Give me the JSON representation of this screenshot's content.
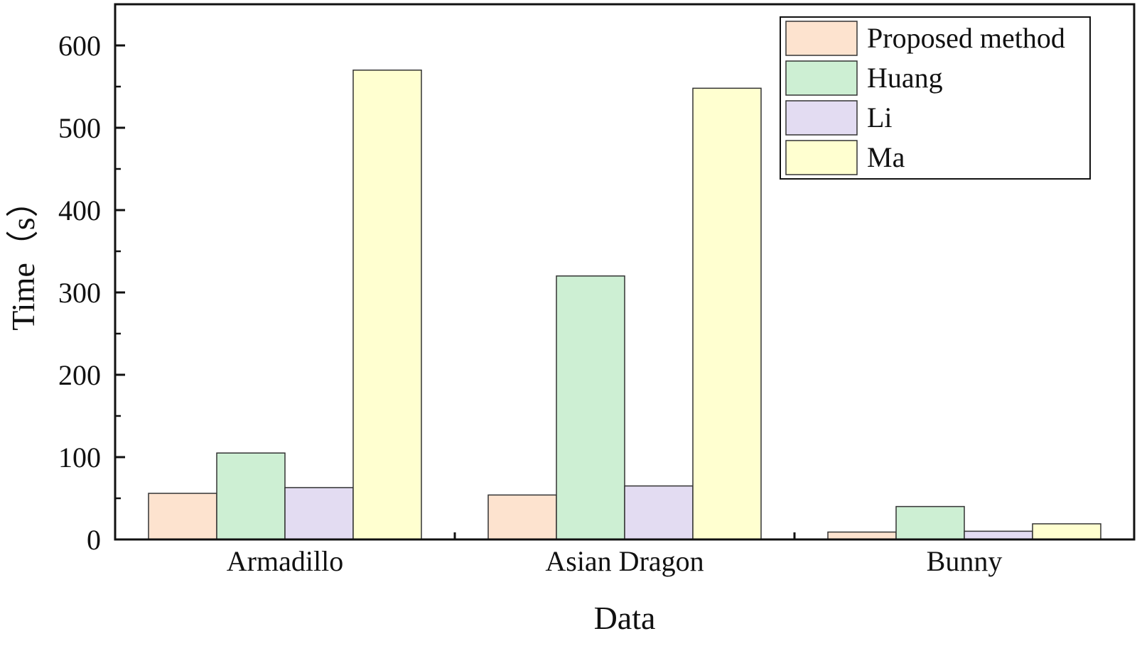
{
  "chart_data": {
    "type": "bar",
    "title": "",
    "xlabel": "Data",
    "ylabel": "Time（s）",
    "categories": [
      "Armadillo",
      "Asian Dragon",
      "Bunny"
    ],
    "series": [
      {
        "name": "Proposed method",
        "values": [
          56,
          54,
          9
        ],
        "color": "#fde3cf"
      },
      {
        "name": "Huang",
        "values": [
          105,
          320,
          40
        ],
        "color": "#cdefd3"
      },
      {
        "name": "Li",
        "values": [
          63,
          65,
          10
        ],
        "color": "#e3dcf2"
      },
      {
        "name": "Ma",
        "values": [
          570,
          548,
          19
        ],
        "color": "#ffffd0"
      }
    ],
    "ylim": [
      0,
      650
    ],
    "yticks": [
      0,
      100,
      200,
      300,
      400,
      500,
      600
    ],
    "grid": false,
    "legend_position": "top-right"
  }
}
